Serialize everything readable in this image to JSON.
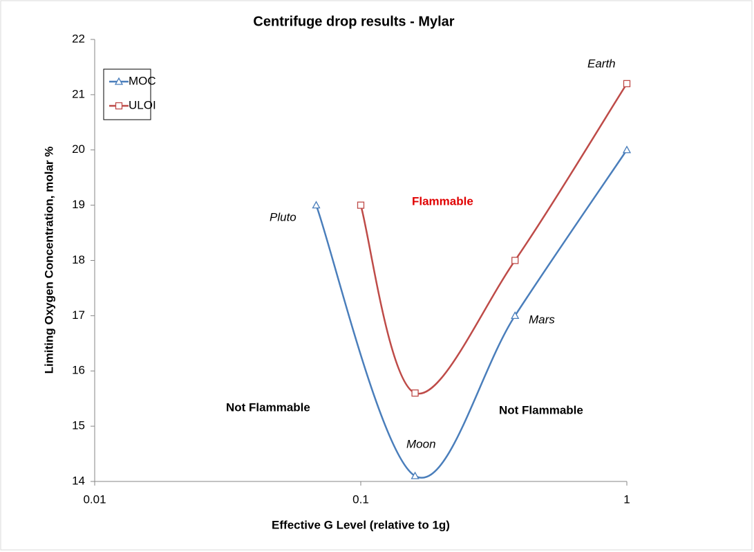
{
  "chart_data": {
    "type": "line",
    "title": "Centrifuge drop  results - Mylar",
    "x_label": "Effective G Level (relative to 1g)",
    "y_label": "Limiting Oxygen Concentration, molar %",
    "x_log": true,
    "xlim": [
      0.01,
      1
    ],
    "xticks": [
      0.01,
      0.1,
      1
    ],
    "ylim": [
      14,
      22
    ],
    "yticks": [
      14,
      15,
      16,
      17,
      18,
      19,
      20,
      21,
      22
    ],
    "legend": "upper left",
    "series": [
      {
        "name": "MOC",
        "color": "#4a7ebb",
        "marker": "triangle",
        "x": [
          0.068,
          0.16,
          0.38,
          1
        ],
        "values": [
          19,
          14.1,
          17,
          20
        ]
      },
      {
        "name": "ULOI",
        "color": "#be4b48",
        "marker": "square",
        "x": [
          0.1,
          0.16,
          0.38,
          1
        ],
        "values": [
          19,
          15.6,
          18,
          21.2
        ]
      }
    ],
    "annotations": [
      {
        "text": "Pluto"
      },
      {
        "text": "Moon"
      },
      {
        "text": "Mars"
      },
      {
        "text": "Earth"
      },
      {
        "text": "Flammable"
      },
      {
        "text": "Not Flammable"
      },
      {
        "text": "Not Flammable"
      }
    ]
  }
}
